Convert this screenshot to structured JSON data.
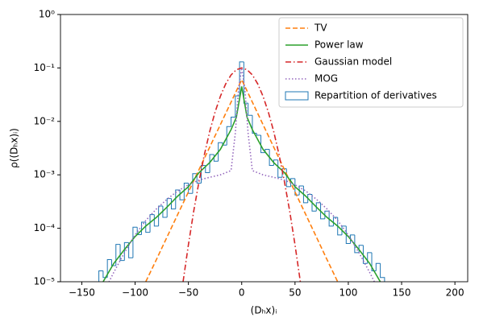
{
  "chart_data": {
    "type": "line",
    "xlabel": "(Dₕx)ᵢ",
    "ylabel": "ρ((Dₕx)ᵢ)",
    "xlim": [
      -170,
      212
    ],
    "ylim": [
      1e-05,
      1
    ],
    "yscale": "log",
    "xticks": [
      {
        "value": -150,
        "label": "−150"
      },
      {
        "value": -100,
        "label": "−100"
      },
      {
        "value": -50,
        "label": "−50"
      },
      0,
      50,
      100,
      150,
      200
    ],
    "yticks": [
      {
        "value": 1e-05,
        "label": "10⁻⁵"
      },
      {
        "value": 0.0001,
        "label": "10⁻⁴"
      },
      {
        "value": 0.001,
        "label": "10⁻³"
      },
      {
        "value": 0.01,
        "label": "10⁻²"
      },
      {
        "value": 0.1,
        "label": "10⁻¹"
      },
      {
        "value": 1,
        "label": "10⁰"
      }
    ],
    "legend": "upper right",
    "series": [
      {
        "name": "TV",
        "color": "#ff7f0e",
        "style": "dashed",
        "x": [
          -90,
          -80,
          -70,
          -60,
          -50,
          -40,
          -30,
          -20,
          -10,
          0,
          10,
          20,
          30,
          40,
          50,
          60,
          70,
          80,
          90
        ],
        "values": [
          1e-05,
          2.6e-05,
          6.9e-05,
          0.000182,
          0.000478,
          0.00126,
          0.00331,
          0.0087,
          0.0229,
          0.0603,
          0.0229,
          0.0087,
          0.00331,
          0.00126,
          0.000478,
          0.000182,
          6.9e-05,
          2.6e-05,
          1e-05
        ]
      },
      {
        "name": "Power law",
        "color": "#2ca02c",
        "style": "solid",
        "x": [
          -130,
          -120,
          -110,
          -100,
          -90,
          -80,
          -70,
          -60,
          -50,
          -40,
          -30,
          -20,
          -10,
          -5,
          0,
          5,
          10,
          20,
          30,
          40,
          50,
          60,
          70,
          80,
          90,
          100,
          110,
          120,
          130
        ],
        "values": [
          1e-05,
          2.2e-05,
          4e-05,
          7e-05,
          0.00011,
          0.00016,
          0.00025,
          0.0004,
          0.0006,
          0.0011,
          0.0017,
          0.003,
          0.007,
          0.012,
          0.045,
          0.012,
          0.007,
          0.003,
          0.0017,
          0.0011,
          0.0006,
          0.0004,
          0.00025,
          0.00016,
          0.00011,
          7e-05,
          4e-05,
          2.2e-05,
          1e-05
        ]
      },
      {
        "name": "Gaussian model",
        "color": "#d62728",
        "style": "dashdot",
        "x": [
          -55,
          -50,
          -45,
          -40,
          -35,
          -30,
          -25,
          -20,
          -15,
          -10,
          -5,
          0,
          5,
          10,
          15,
          20,
          25,
          30,
          35,
          40,
          45,
          50,
          55
        ],
        "values": [
          1e-05,
          4.9e-05,
          0.00021,
          0.00076,
          0.0024,
          0.0065,
          0.0149,
          0.0295,
          0.0504,
          0.074,
          0.0927,
          0.1,
          0.0927,
          0.074,
          0.0504,
          0.0295,
          0.0149,
          0.0065,
          0.0024,
          0.00076,
          0.00021,
          4.9e-05,
          1e-05
        ]
      },
      {
        "name": "MOG",
        "color": "#9467bd",
        "style": "dotted",
        "x": [
          -130,
          -120,
          -110,
          -100,
          -90,
          -80,
          -70,
          -60,
          -50,
          -40,
          -30,
          -20,
          -10,
          -6,
          -3,
          0,
          3,
          6,
          10,
          20,
          30,
          40,
          50,
          60,
          70,
          80,
          90,
          100,
          110,
          120,
          130
        ],
        "values": [
          6e-06,
          1.5e-05,
          3.5e-05,
          7.5e-05,
          0.00014,
          0.00023,
          0.00035,
          0.0005,
          0.00065,
          0.0008,
          0.0009,
          0.001,
          0.0012,
          0.006,
          0.04,
          0.1,
          0.04,
          0.006,
          0.0012,
          0.001,
          0.0009,
          0.0008,
          0.00065,
          0.0005,
          0.00035,
          0.00023,
          0.00014,
          7.5e-05,
          3.5e-05,
          1.5e-05,
          6e-06
        ]
      }
    ],
    "histogram": {
      "name": "Repartition of derivatives",
      "color": "#1f77b4",
      "bins": [
        -134,
        -130,
        -126,
        -122,
        -118,
        -114,
        -110,
        -106,
        -102,
        -98,
        -94,
        -90,
        -86,
        -82,
        -78,
        -74,
        -70,
        -66,
        -62,
        -58,
        -54,
        -50,
        -46,
        -42,
        -38,
        -34,
        -30,
        -26,
        -22,
        -18,
        -14,
        -10,
        -6,
        -2,
        2,
        6,
        10,
        14,
        18,
        22,
        26,
        30,
        34,
        38,
        42,
        46,
        50,
        54,
        58,
        62,
        66,
        70,
        74,
        78,
        82,
        86,
        90,
        94,
        98,
        102,
        106,
        110,
        114,
        118,
        122,
        126,
        130,
        134
      ],
      "counts": [
        1.6e-05,
        1.2e-05,
        2.6e-05,
        2e-05,
        5e-05,
        2.5e-05,
        5.4e-05,
        2.8e-05,
        0.000105,
        7.6e-05,
        0.00013,
        8.4e-05,
        0.00018,
        0.00011,
        0.00026,
        0.00016,
        0.00036,
        0.00023,
        0.00052,
        0.00034,
        0.0007,
        0.00045,
        0.00105,
        0.0007,
        0.0015,
        0.0011,
        0.0024,
        0.0018,
        0.004,
        0.0036,
        0.008,
        0.012,
        0.03,
        0.13,
        0.022,
        0.013,
        0.006,
        0.0055,
        0.0026,
        0.003,
        0.0015,
        0.0019,
        0.0009,
        0.0013,
        0.0006,
        0.00085,
        0.00042,
        0.00062,
        0.0003,
        0.00043,
        0.00021,
        0.0003,
        0.00015,
        0.00021,
        0.00011,
        0.00016,
        7.5e-05,
        0.00011,
        5.2e-05,
        7.5e-05,
        3.5e-05,
        4.8e-05,
        2.2e-05,
        3.5e-05,
        1.6e-05,
        2.2e-05,
        1.2e-05
      ]
    }
  }
}
